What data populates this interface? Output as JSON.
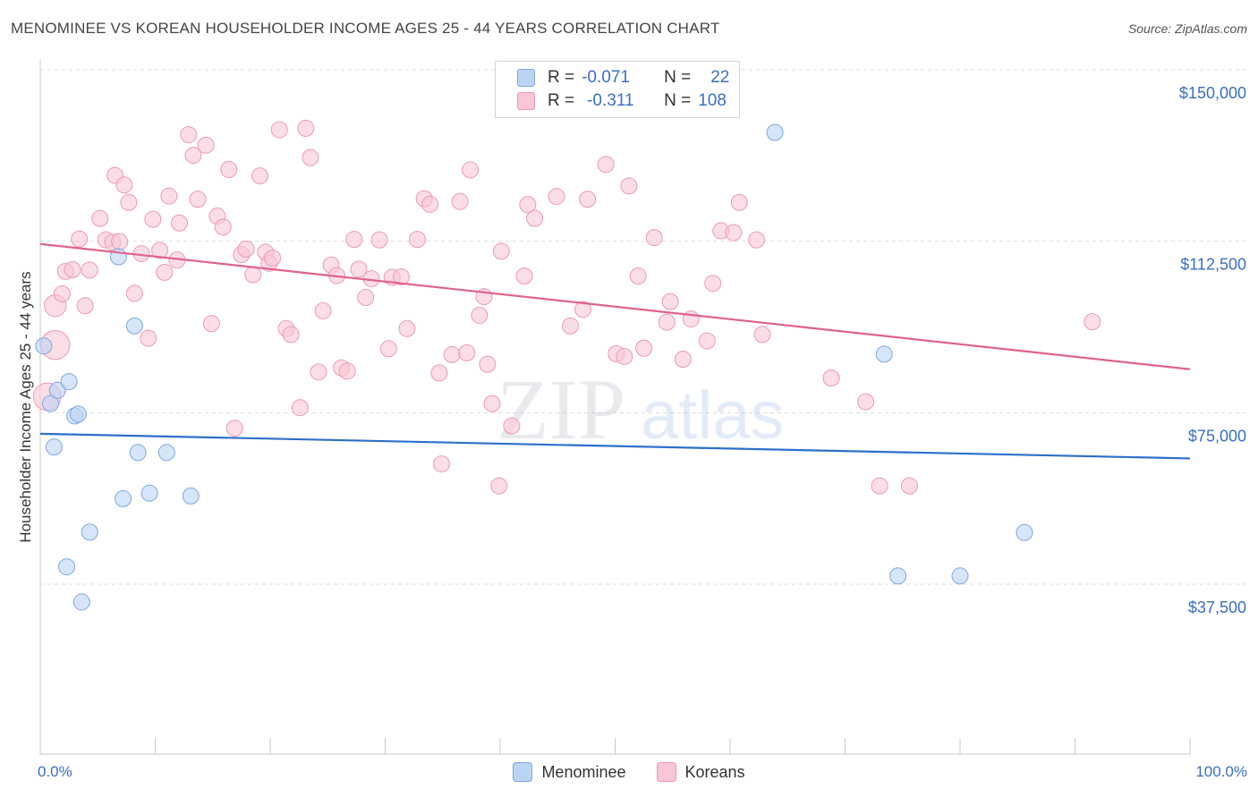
{
  "title": "MENOMINEE VS KOREAN HOUSEHOLDER INCOME AGES 25 - 44 YEARS CORRELATION CHART",
  "source": "Source: ZipAtlas.com",
  "watermark": {
    "zip": "ZIP",
    "atlas": "atlas"
  },
  "colors": {
    "blue_fill": "#bcd4f4",
    "blue_stroke": "#7fa7df",
    "blue_line": "#2e6fcb",
    "pink_fill": "#f8c6d4",
    "pink_stroke": "#eb9ab3",
    "pink_line": "#e0628c",
    "axis_text": "#3a6fc4"
  },
  "stats_box": {
    "rows": [
      {
        "r_label": "R =",
        "r_value": "-0.071",
        "n_label": "N =",
        "n_value": "22"
      },
      {
        "r_label": "R =",
        "r_value": "-0.311",
        "n_label": "N =",
        "n_value": "108"
      }
    ]
  },
  "legend": {
    "items": [
      "Menominee",
      "Koreans"
    ]
  },
  "x_axis_labels": {
    "left": "0.0%",
    "right": "100.0%"
  },
  "chart_data": {
    "type": "scatter",
    "title": "MENOMINEE VS KOREAN HOUSEHOLDER INCOME AGES 25 - 44 YEARS CORRELATION CHART",
    "xlabel": "",
    "ylabel": "Householder Income Ages 25 - 44 years",
    "xlim": [
      0,
      100
    ],
    "ylim": [
      0,
      155000
    ],
    "y_ticks": [
      {
        "value": 37500,
        "label": "$37,500"
      },
      {
        "value": 75000,
        "label": "$75,000"
      },
      {
        "value": 112500,
        "label": "$112,500"
      },
      {
        "value": 150000,
        "label": "$150,000"
      }
    ],
    "series": [
      {
        "name": "Menominee",
        "r": -0.071,
        "n": 22,
        "trend": {
          "x": [
            0,
            100
          ],
          "y": [
            70400,
            65000
          ]
        },
        "points": [
          [
            0.3,
            89600,
            1
          ],
          [
            0.9,
            77000,
            1
          ],
          [
            1.2,
            67500,
            1
          ],
          [
            1.5,
            79900,
            1
          ],
          [
            2.3,
            41300,
            1
          ],
          [
            2.5,
            81800,
            1
          ],
          [
            3.0,
            74300,
            1
          ],
          [
            3.3,
            74700,
            1
          ],
          [
            3.6,
            33600,
            1
          ],
          [
            4.3,
            48900,
            1
          ],
          [
            6.8,
            109100,
            1
          ],
          [
            7.2,
            56200,
            1
          ],
          [
            8.2,
            94000,
            1
          ],
          [
            8.5,
            66300,
            1
          ],
          [
            9.5,
            57400,
            1
          ],
          [
            11.0,
            66300,
            1
          ],
          [
            13.1,
            56800,
            1
          ],
          [
            63.9,
            136300,
            1
          ],
          [
            73.4,
            87800,
            1
          ],
          [
            74.6,
            39300,
            1
          ],
          [
            80.0,
            39300,
            1
          ],
          [
            85.6,
            48800,
            1
          ]
        ]
      },
      {
        "name": "Koreans",
        "r": -0.311,
        "n": 108,
        "trend": {
          "x": [
            0,
            100
          ],
          "y": [
            111900,
            84500
          ]
        },
        "points": [
          [
            0.6,
            78500,
            1.7
          ],
          [
            1.3,
            89800,
            1.8
          ],
          [
            1.3,
            98400,
            1.35
          ],
          [
            1.9,
            101000,
            1
          ],
          [
            2.2,
            105900,
            1
          ],
          [
            2.8,
            106300,
            1
          ],
          [
            3.4,
            113000,
            1
          ],
          [
            3.9,
            98400,
            1
          ],
          [
            4.3,
            106200,
            1
          ],
          [
            5.2,
            117500,
            1
          ],
          [
            5.7,
            112800,
            1
          ],
          [
            6.3,
            112300,
            1
          ],
          [
            6.5,
            126900,
            1
          ],
          [
            6.9,
            112400,
            1
          ],
          [
            7.3,
            124800,
            1
          ],
          [
            7.7,
            121000,
            1
          ],
          [
            8.2,
            101100,
            1
          ],
          [
            8.8,
            109800,
            1
          ],
          [
            9.4,
            91300,
            1
          ],
          [
            9.8,
            117300,
            1
          ],
          [
            10.4,
            110500,
            1
          ],
          [
            10.8,
            105700,
            1
          ],
          [
            11.2,
            122400,
            1
          ],
          [
            11.9,
            108400,
            1
          ],
          [
            12.1,
            116500,
            1
          ],
          [
            12.9,
            135800,
            1
          ],
          [
            13.3,
            131300,
            1
          ],
          [
            13.7,
            121700,
            1
          ],
          [
            14.4,
            133500,
            1
          ],
          [
            14.9,
            94500,
            1
          ],
          [
            15.4,
            118000,
            1
          ],
          [
            15.9,
            115600,
            1
          ],
          [
            16.4,
            128200,
            1
          ],
          [
            16.9,
            71600,
            1
          ],
          [
            17.5,
            109600,
            1
          ],
          [
            17.9,
            110800,
            1
          ],
          [
            18.5,
            105200,
            1
          ],
          [
            19.1,
            126800,
            1
          ],
          [
            19.6,
            110100,
            1
          ],
          [
            19.9,
            107700,
            1
          ],
          [
            20.2,
            108800,
            1
          ],
          [
            20.8,
            136900,
            1
          ],
          [
            21.4,
            93400,
            1
          ],
          [
            21.8,
            92100,
            1
          ],
          [
            22.6,
            76100,
            1
          ],
          [
            23.1,
            137200,
            1
          ],
          [
            23.5,
            130800,
            1
          ],
          [
            24.2,
            83900,
            1
          ],
          [
            24.6,
            97300,
            1
          ],
          [
            25.3,
            107300,
            1
          ],
          [
            25.8,
            105000,
            1
          ],
          [
            26.2,
            84800,
            1
          ],
          [
            26.7,
            84100,
            1
          ],
          [
            27.3,
            112900,
            1
          ],
          [
            27.7,
            106400,
            1
          ],
          [
            28.3,
            100200,
            1
          ],
          [
            28.8,
            104300,
            1
          ],
          [
            29.5,
            112800,
            1
          ],
          [
            30.3,
            89000,
            1
          ],
          [
            30.6,
            104600,
            1
          ],
          [
            31.4,
            104700,
            1
          ],
          [
            31.9,
            93400,
            1
          ],
          [
            32.8,
            112900,
            1
          ],
          [
            33.4,
            121800,
            1
          ],
          [
            33.9,
            120600,
            1
          ],
          [
            34.7,
            83700,
            1
          ],
          [
            34.9,
            63800,
            1
          ],
          [
            35.8,
            87700,
            1
          ],
          [
            36.5,
            121200,
            1
          ],
          [
            37.1,
            88100,
            1
          ],
          [
            37.4,
            128100,
            1
          ],
          [
            38.2,
            96300,
            1
          ],
          [
            38.6,
            100400,
            1
          ],
          [
            38.9,
            85600,
            1
          ],
          [
            39.3,
            77000,
            1
          ],
          [
            39.9,
            59000,
            1
          ],
          [
            40.1,
            110300,
            1
          ],
          [
            41.0,
            72100,
            1
          ],
          [
            42.1,
            104900,
            1
          ],
          [
            42.4,
            120500,
            1
          ],
          [
            43.0,
            117500,
            1
          ],
          [
            44.9,
            122300,
            1
          ],
          [
            46.1,
            94000,
            1
          ],
          [
            47.2,
            97600,
            1
          ],
          [
            47.6,
            121700,
            1
          ],
          [
            49.2,
            129300,
            1
          ],
          [
            50.1,
            87900,
            1
          ],
          [
            50.8,
            87300,
            1
          ],
          [
            51.2,
            124600,
            1
          ],
          [
            52.0,
            104900,
            1
          ],
          [
            52.5,
            89100,
            1
          ],
          [
            53.4,
            113300,
            1
          ],
          [
            54.5,
            94800,
            1
          ],
          [
            54.8,
            99300,
            1
          ],
          [
            55.9,
            86700,
            1
          ],
          [
            56.6,
            95500,
            1
          ],
          [
            58.0,
            90700,
            1
          ],
          [
            58.5,
            103300,
            1
          ],
          [
            59.2,
            114800,
            1
          ],
          [
            60.3,
            114400,
            1
          ],
          [
            60.8,
            121000,
            1
          ],
          [
            62.3,
            112800,
            1
          ],
          [
            62.8,
            92100,
            1
          ],
          [
            68.8,
            82600,
            1
          ],
          [
            71.8,
            77400,
            1
          ],
          [
            73.0,
            59000,
            1
          ],
          [
            75.6,
            59000,
            1
          ],
          [
            91.5,
            94900,
            1
          ]
        ]
      }
    ]
  }
}
